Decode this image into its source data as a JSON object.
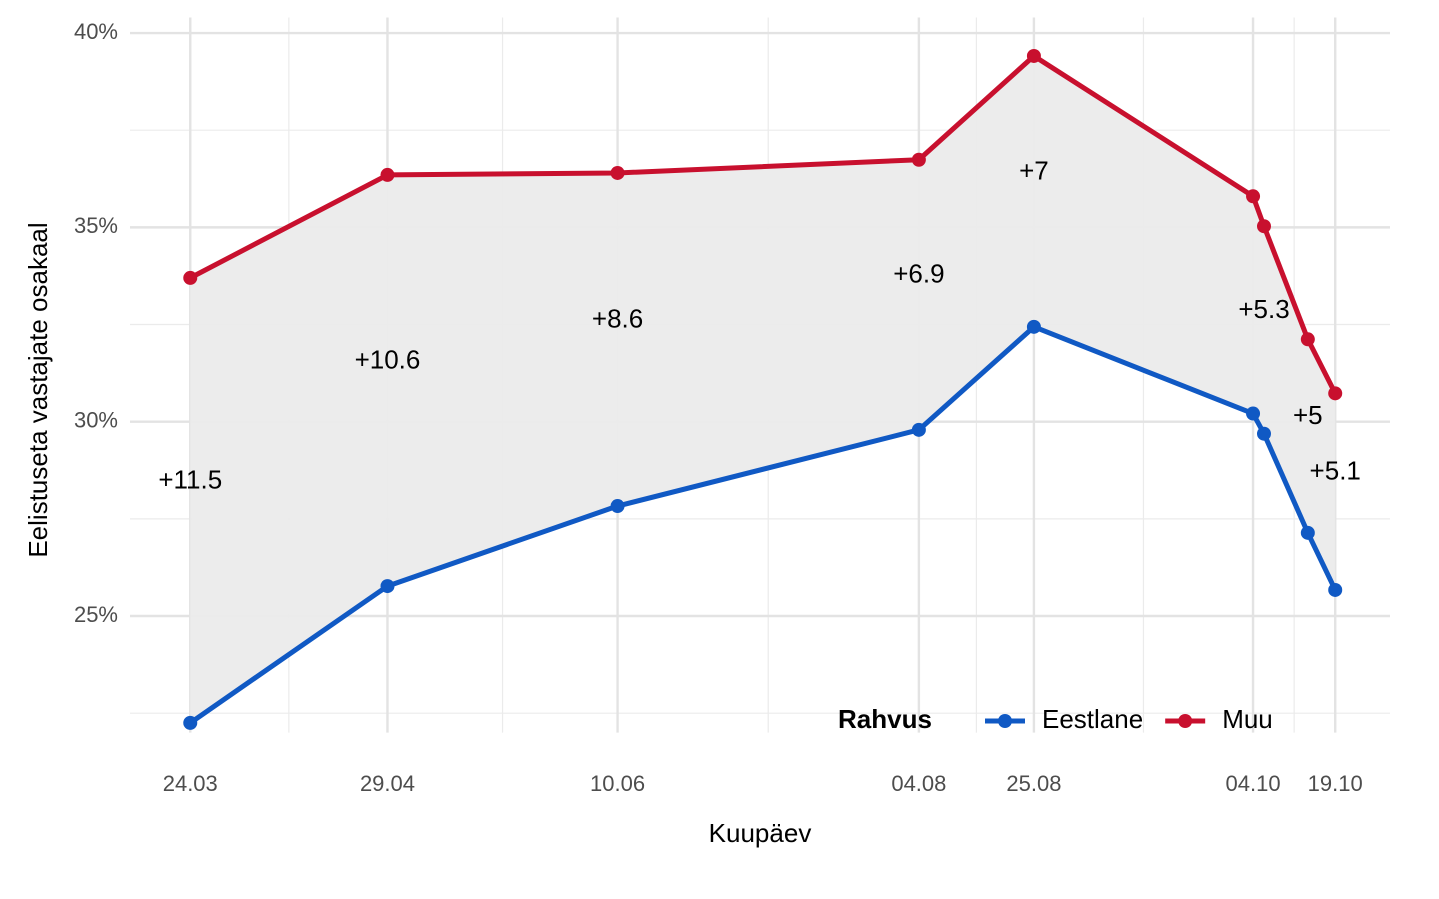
{
  "chart_data": {
    "type": "line",
    "x_label": "Kuupäev",
    "y_label": "Eelistuseta vastajate osakaal",
    "x": [
      "24.03",
      "29.04",
      "10.06",
      "04.08",
      "25.08",
      "04.10",
      "06.10",
      "14.10",
      "19.10"
    ],
    "xlim": [
      "13.03",
      "29.10"
    ],
    "xticks": [
      "24.03",
      "29.04",
      "10.06",
      "04.08",
      "25.08",
      "04.10",
      "19.10"
    ],
    "ylim": [
      22,
      40.4
    ],
    "yticks": [
      {
        "value": 25,
        "label": "25%"
      },
      {
        "value": 30,
        "label": "30%"
      },
      {
        "value": 35,
        "label": "35%"
      },
      {
        "value": 40,
        "label": "40%"
      }
    ],
    "grid": true,
    "ribbon_color": "#ebebeb",
    "series": [
      {
        "name": "Eestlane",
        "color": "#1059c4",
        "values": [
          22.25,
          25.77,
          27.83,
          29.79,
          32.44,
          30.21,
          29.69,
          27.14,
          25.67
        ]
      },
      {
        "name": "Muu",
        "color": "#c8102e",
        "values": [
          33.7,
          36.35,
          36.4,
          36.74,
          39.41,
          35.8,
          35.03,
          32.12,
          30.73
        ]
      }
    ],
    "diff_labels": [
      "+11.5",
      "+10.6",
      "+8.6",
      "+6.9",
      "+7",
      null,
      "+5.3",
      "+5",
      "+5.1"
    ],
    "legend_title": "Rahvus",
    "legend_position": "bottom-right"
  }
}
